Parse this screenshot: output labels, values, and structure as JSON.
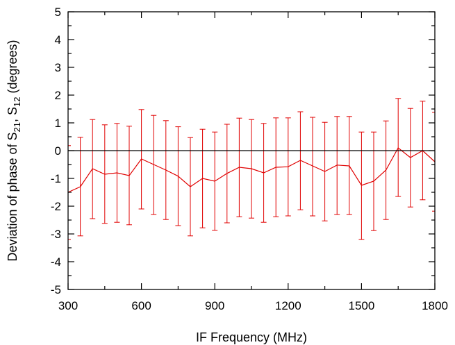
{
  "chart_data": {
    "type": "line",
    "xlabel": "IF Frequency (MHz)",
    "ylabel": {
      "prefix": "Deviation of phase of S",
      "sub1": "21",
      "mid": ", S",
      "sub2": "12",
      "suffix": " (degrees)"
    },
    "xlim": [
      300,
      1800
    ],
    "ylim": [
      -5,
      5
    ],
    "xticks": [
      300,
      600,
      900,
      1200,
      1500,
      1800
    ],
    "yticks": [
      -5,
      -4,
      -3,
      -2,
      -1,
      0,
      1,
      2,
      3,
      4,
      5
    ],
    "zero_line": true,
    "grid": false,
    "series": [
      {
        "color": "#e00000",
        "x": [
          300,
          350,
          400,
          450,
          500,
          550,
          600,
          650,
          700,
          750,
          800,
          850,
          900,
          950,
          1000,
          1050,
          1100,
          1150,
          1200,
          1250,
          1300,
          1350,
          1400,
          1450,
          1500,
          1550,
          1600,
          1650,
          1700,
          1750,
          1800
        ],
        "y": [
          -1.5,
          -1.3,
          -0.65,
          -0.85,
          -0.8,
          -0.9,
          -0.3,
          -0.5,
          -0.7,
          -0.92,
          -1.3,
          -1.0,
          -1.1,
          -0.82,
          -0.6,
          -0.65,
          -0.8,
          -0.6,
          -0.58,
          -0.35,
          -0.55,
          -0.75,
          -0.52,
          -0.55,
          -1.25,
          -1.1,
          -0.7,
          0.1,
          -0.25,
          0.0,
          -0.4
        ],
        "err_low": [
          -3.2,
          -3.07,
          -2.45,
          -2.62,
          -2.58,
          -2.67,
          -2.1,
          -2.3,
          -2.48,
          -2.7,
          -3.07,
          -2.78,
          -2.87,
          -2.6,
          -2.38,
          -2.43,
          -2.58,
          -2.38,
          -2.35,
          -2.13,
          -2.35,
          -2.53,
          -2.3,
          -2.3,
          -3.2,
          -2.88,
          -2.48,
          -1.65,
          -2.03,
          -1.77,
          -2.18
        ],
        "err_high": [
          0.18,
          0.48,
          1.12,
          0.93,
          0.98,
          0.88,
          1.48,
          1.27,
          1.08,
          0.86,
          0.47,
          0.77,
          0.67,
          0.95,
          1.17,
          1.12,
          0.98,
          1.18,
          1.18,
          1.4,
          1.2,
          1.02,
          1.23,
          1.23,
          0.67,
          0.67,
          1.07,
          1.88,
          1.52,
          1.78,
          1.38
        ]
      }
    ]
  }
}
